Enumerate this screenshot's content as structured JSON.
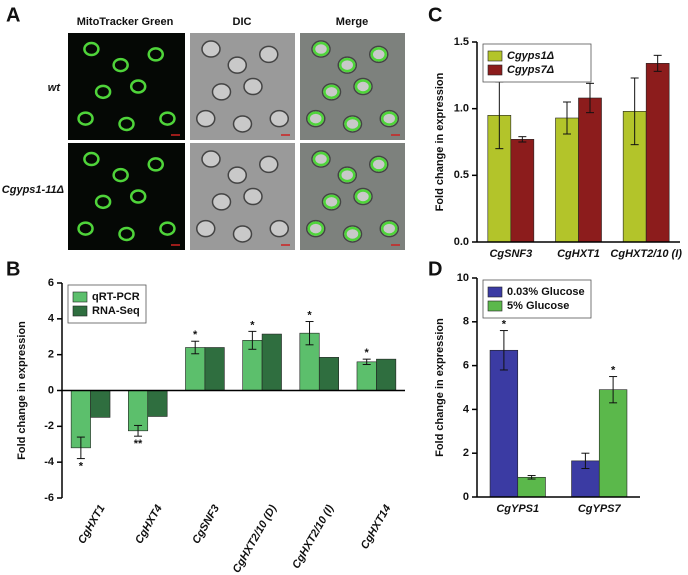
{
  "panel_a": {
    "letter": "A",
    "columns": [
      "MitoTracker Green",
      "DIC",
      "Merge"
    ],
    "rows": [
      "wt",
      "Cgyps1-11Δ"
    ]
  },
  "chart_data": [
    {
      "type": "bar",
      "panel": "B",
      "ylabel": "Fold change in expression",
      "categories": [
        "CgHXT1",
        "CgHXT4",
        "CgSNF3",
        "CgHXT2/10 (D)",
        "CgHXT2/10 (I)",
        "CgHXT14"
      ],
      "series": [
        {
          "name": "qRT-PCR",
          "color": "#5cbf6c",
          "values": [
            -3.2,
            -2.25,
            2.4,
            2.8,
            3.2,
            1.6
          ],
          "errors": [
            0.6,
            0.3,
            0.35,
            0.5,
            0.65,
            0.15
          ],
          "significance": [
            "*",
            "**",
            "*",
            "*",
            "*",
            "*"
          ]
        },
        {
          "name": "RNA-Seq",
          "color": "#2f6e3f",
          "values": [
            -1.5,
            -1.45,
            2.4,
            3.15,
            1.85,
            1.75
          ]
        }
      ],
      "ylim": [
        -6,
        6
      ],
      "yticks": [
        -6,
        -4,
        -2,
        0,
        2,
        4,
        6
      ],
      "legend": "upper left",
      "rotated_labels": true
    },
    {
      "type": "bar",
      "panel": "C",
      "ylabel": "Fold change in expression",
      "categories": [
        "CgSNF3",
        "CgHXT1",
        "CgHXT2/10 (I)"
      ],
      "series": [
        {
          "name": "Cgyps1Δ",
          "color": "#b3c42a",
          "values": [
            0.95,
            0.93,
            0.98
          ],
          "errors": [
            0.25,
            0.12,
            0.25
          ]
        },
        {
          "name": "Cgyps7Δ",
          "color": "#8c1c1c",
          "values": [
            0.77,
            1.08,
            1.34
          ],
          "errors": [
            0.02,
            0.11,
            0.06
          ]
        }
      ],
      "ylim": [
        0,
        1.5
      ],
      "yticks": [
        {
          "value": 0,
          "label": "0.0"
        },
        0.5,
        {
          "value": 1,
          "label": "1.0"
        },
        1.5
      ],
      "legend": "upper left",
      "rotated_labels": false
    },
    {
      "type": "bar",
      "panel": "D",
      "ylabel": "Fold change in expression",
      "categories": [
        "CgYPS1",
        "CgYPS7"
      ],
      "series": [
        {
          "name": "0.03% Glucose",
          "color": "#3b3ba3",
          "values": [
            6.7,
            1.65
          ],
          "errors": [
            0.9,
            0.35
          ],
          "significance": [
            "*",
            null
          ]
        },
        {
          "name": "5% Glucose",
          "color": "#5bb84b",
          "values": [
            0.9,
            4.9
          ],
          "errors": [
            0.08,
            0.6
          ],
          "significance": [
            null,
            "*"
          ]
        }
      ],
      "ylim": [
        0,
        10
      ],
      "yticks": [
        0,
        2,
        4,
        6,
        8,
        10
      ],
      "legend": "upper left",
      "rotated_labels": false
    }
  ]
}
